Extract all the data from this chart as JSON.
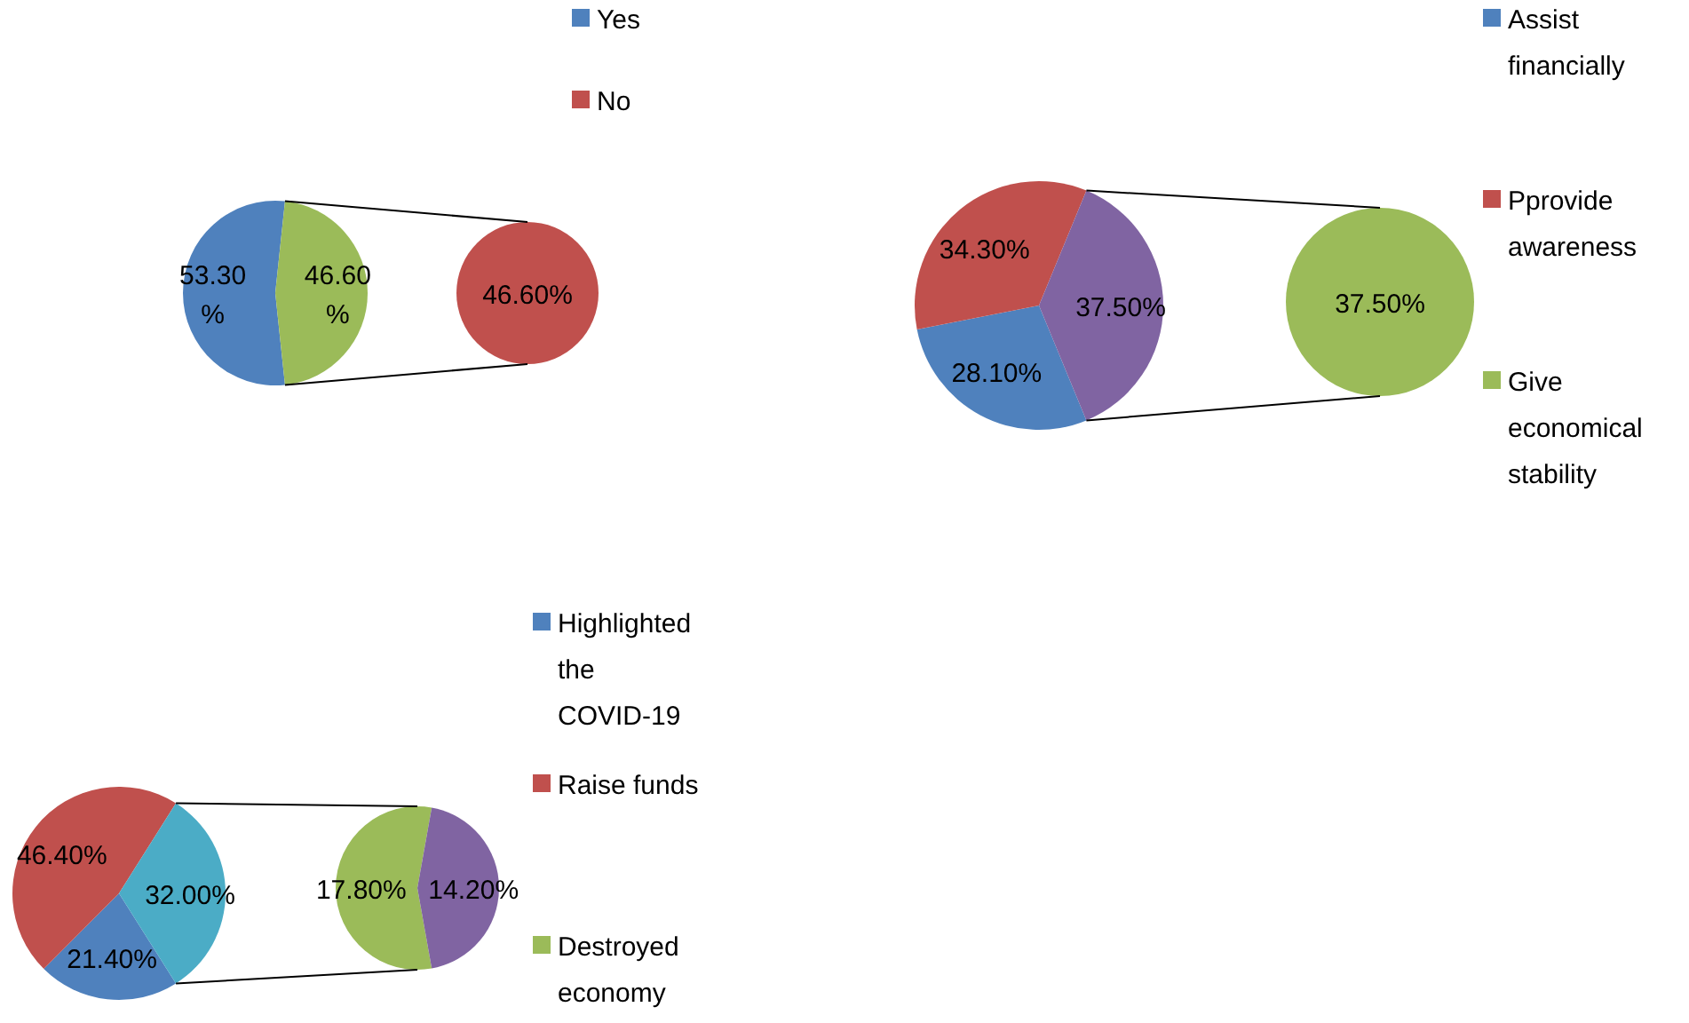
{
  "chart_data": [
    {
      "type": "pie",
      "categories": [
        "Yes",
        null
      ],
      "values": [
        53.3,
        46.6
      ],
      "colors": [
        "#4f81bd",
        "#9bbb59"
      ],
      "value_labels": [
        "53.30%",
        "46.60%"
      ],
      "legend": "right"
    },
    {
      "type": "pie",
      "categories": [
        "No"
      ],
      "values": [
        46.6
      ],
      "colors": [
        "#c0504d"
      ],
      "value_labels": [
        "46.60%"
      ],
      "legend": "right"
    },
    {
      "type": "pie",
      "categories": [
        "Assist financially",
        "Pprovide awareness",
        null
      ],
      "values": [
        28.1,
        34.3,
        37.5
      ],
      "colors": [
        "#4f81bd",
        "#c0504d",
        "#8064a2"
      ],
      "value_labels": [
        "28.10%",
        "34.30%",
        "37.50%"
      ],
      "legend": "right"
    },
    {
      "type": "pie",
      "categories": [
        "Give economical stability"
      ],
      "values": [
        37.5
      ],
      "colors": [
        "#9bbb59"
      ],
      "value_labels": [
        "37.50%"
      ],
      "legend": "right"
    },
    {
      "type": "pie",
      "categories": [
        "Highlighted the COVID-19",
        "Raise funds",
        null
      ],
      "values": [
        21.4,
        46.4,
        32.0
      ],
      "colors": [
        "#4f81bd",
        "#c0504d",
        "#4bacc6"
      ],
      "value_labels": [
        "21.40%",
        "46.40%",
        "32.00%"
      ],
      "legend": "right"
    },
    {
      "type": "pie",
      "categories": [
        "Destroyed economy",
        null
      ],
      "values": [
        17.8,
        14.2
      ],
      "colors": [
        "#9bbb59",
        "#8064a2"
      ],
      "value_labels": [
        "17.80%",
        "14.20%"
      ],
      "legend": "right"
    }
  ]
}
